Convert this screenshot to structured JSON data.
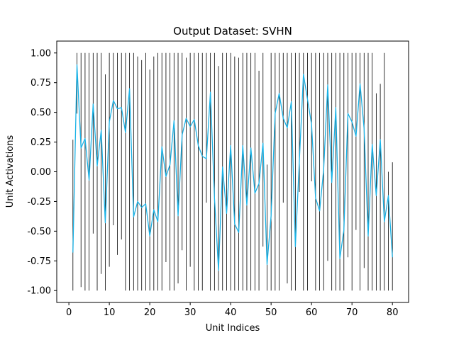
{
  "chart_data": {
    "type": "line",
    "title": "Output Dataset: SVHN",
    "xlabel": "Unit Indices",
    "ylabel": "Unit Activations",
    "xlim": [
      -3,
      84
    ],
    "ylim": [
      -1.1,
      1.1
    ],
    "xticks": [
      0,
      10,
      20,
      30,
      40,
      50,
      60,
      70,
      80
    ],
    "yticks": [
      -1.0,
      -0.75,
      -0.5,
      -0.25,
      0.0,
      0.25,
      0.5,
      0.75,
      1.0
    ],
    "ytick_labels": [
      "-1.00",
      "-0.75",
      "-0.50",
      "-0.25",
      "0.00",
      "0.25",
      "0.50",
      "0.75",
      "1.00"
    ],
    "xtick_labels": [
      "0",
      "10",
      "20",
      "30",
      "40",
      "50",
      "60",
      "70",
      "80"
    ],
    "grid": false,
    "line_color": "#1ab2e6",
    "bar_color": "#000000",
    "series": [
      {
        "type": "line",
        "x": [
          1,
          2,
          3,
          4,
          5,
          6,
          7,
          8,
          9,
          10,
          11,
          12,
          13,
          14,
          15,
          16,
          17,
          18,
          19,
          20,
          21,
          22,
          23,
          24,
          25,
          26,
          27,
          28,
          29,
          30,
          31,
          32,
          33,
          34,
          35,
          36,
          37,
          38,
          39,
          40,
          41,
          42,
          43,
          44,
          45,
          46,
          47,
          48,
          49,
          50,
          51,
          52,
          53,
          54,
          55,
          56,
          57,
          58,
          59,
          60,
          61,
          62,
          63,
          64,
          65,
          66,
          67,
          68,
          69,
          70,
          71,
          72,
          73,
          74,
          75,
          76,
          77,
          78,
          79,
          80
        ],
        "values": [
          -0.68,
          0.9,
          0.2,
          0.28,
          -0.07,
          0.57,
          0.05,
          0.35,
          -0.43,
          0.42,
          0.6,
          0.53,
          0.54,
          0.33,
          0.7,
          -0.38,
          -0.25,
          -0.3,
          -0.27,
          -0.54,
          -0.32,
          -0.42,
          0.21,
          -0.04,
          0.06,
          0.43,
          -0.37,
          0.31,
          0.45,
          0.38,
          0.44,
          0.22,
          0.13,
          0.11,
          0.67,
          -0.22,
          -0.83,
          0.04,
          -0.35,
          0.22,
          -0.44,
          -0.51,
          0.22,
          -0.28,
          0.2,
          -0.18,
          -0.1,
          0.24,
          -0.78,
          -0.37,
          0.49,
          0.66,
          0.45,
          0.37,
          0.59,
          -0.63,
          0.1,
          0.82,
          0.61,
          0.4,
          -0.22,
          -0.33,
          0.02,
          0.73,
          -0.09,
          0.54,
          -0.73,
          -0.49,
          0.49,
          0.42,
          0.3,
          0.74,
          0.36,
          -0.54,
          0.23,
          -0.2,
          0.27,
          -0.42,
          -0.2,
          -0.72
        ]
      },
      {
        "type": "vlines",
        "x": [
          1,
          2,
          3,
          4,
          5,
          6,
          7,
          8,
          9,
          10,
          11,
          12,
          13,
          14,
          15,
          16,
          17,
          18,
          19,
          20,
          21,
          22,
          23,
          24,
          25,
          26,
          27,
          28,
          29,
          30,
          31,
          32,
          33,
          34,
          35,
          36,
          37,
          38,
          39,
          40,
          41,
          42,
          43,
          44,
          45,
          46,
          47,
          48,
          49,
          50,
          51,
          52,
          53,
          54,
          55,
          56,
          57,
          58,
          59,
          60,
          61,
          62,
          63,
          64,
          65,
          66,
          67,
          68,
          69,
          70,
          71,
          72,
          73,
          74,
          75,
          76,
          77,
          78,
          79,
          80
        ],
        "ymin": [
          -1.0,
          0.49,
          -0.97,
          -1.0,
          -1.0,
          -0.52,
          -1.0,
          -0.86,
          -1.0,
          -0.8,
          -0.45,
          -0.7,
          -0.57,
          -1.0,
          -1.0,
          -1.0,
          -1.0,
          -1.0,
          -1.0,
          -1.0,
          -1.0,
          -1.0,
          -1.0,
          -0.76,
          -1.0,
          -1.0,
          -0.94,
          -0.66,
          -1.0,
          -0.8,
          -1.0,
          -1.0,
          -1.0,
          -0.26,
          -1.0,
          -1.0,
          -1.0,
          -1.0,
          -1.0,
          -1.0,
          -1.0,
          -1.0,
          -1.0,
          -1.0,
          -1.0,
          -1.0,
          -1.0,
          -0.63,
          -1.0,
          -1.0,
          -1.0,
          -1.0,
          -0.26,
          -0.94,
          -1.0,
          -1.0,
          -0.17,
          -1.0,
          -1.0,
          -0.08,
          -1.0,
          -1.0,
          -1.0,
          -0.75,
          -1.0,
          -1.0,
          -1.0,
          -1.0,
          -0.72,
          -1.0,
          -0.49,
          -1.0,
          -0.81,
          -1.0,
          -1.0,
          -1.0,
          -1.0,
          -1.0,
          -1.0,
          -1.0
        ],
        "ymax": [
          0.27,
          1.0,
          1.0,
          1.0,
          1.0,
          1.0,
          1.0,
          1.0,
          0.82,
          1.0,
          1.0,
          1.0,
          1.0,
          1.0,
          1.0,
          1.0,
          0.97,
          0.94,
          1.0,
          0.86,
          0.97,
          1.0,
          1.0,
          1.0,
          1.0,
          1.0,
          1.0,
          1.0,
          0.96,
          1.0,
          1.0,
          1.0,
          1.0,
          1.0,
          1.0,
          1.0,
          0.89,
          1.0,
          1.0,
          1.0,
          0.97,
          0.96,
          1.0,
          1.0,
          1.0,
          1.0,
          0.85,
          1.0,
          0.06,
          1.0,
          1.0,
          1.0,
          1.0,
          1.0,
          1.0,
          1.0,
          1.0,
          1.0,
          1.0,
          1.0,
          1.0,
          1.0,
          1.0,
          1.0,
          1.0,
          1.0,
          1.0,
          1.0,
          1.0,
          1.0,
          1.0,
          1.0,
          1.0,
          1.0,
          1.0,
          0.66,
          0.74,
          1.0,
          0.0,
          0.08
        ]
      }
    ]
  }
}
